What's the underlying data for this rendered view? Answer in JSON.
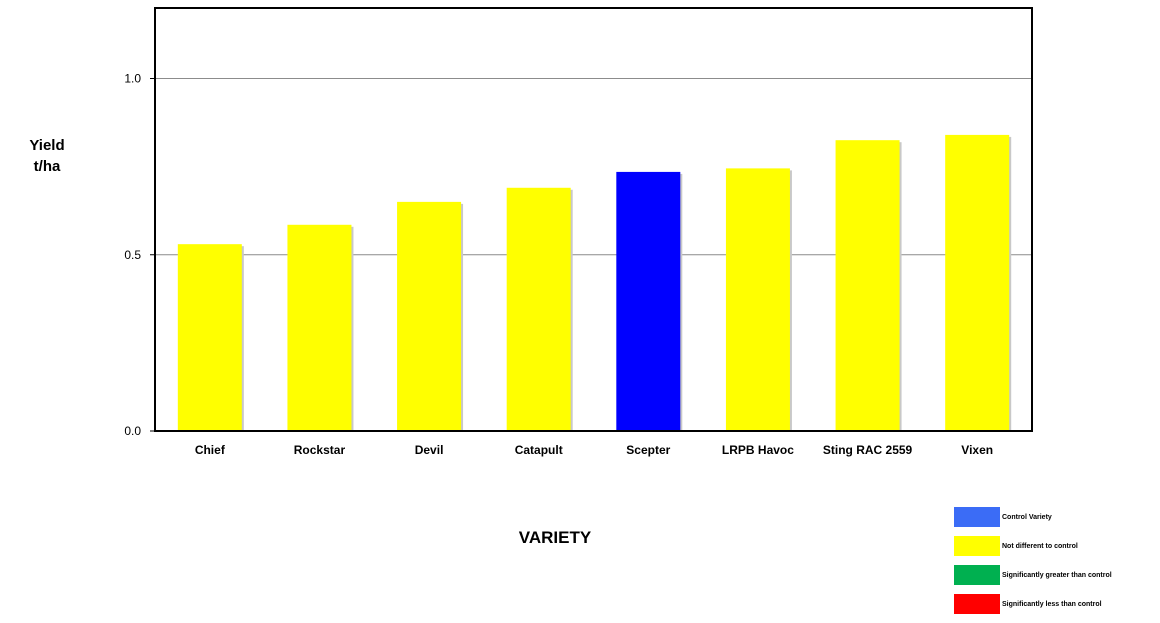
{
  "chart_data": {
    "type": "bar",
    "title": "",
    "xlabel": "VARIETY",
    "ylabel": [
      "Yield",
      "t/ha"
    ],
    "ylim": [
      0,
      1.2
    ],
    "yticks": [
      0.0,
      0.5,
      1.0
    ],
    "ytick_labels": [
      "0.0",
      "0.5",
      "1.0"
    ],
    "grid": "horizontal at 0.5 and 1.0",
    "categories": [
      "Chief",
      "Rockstar",
      "Devil",
      "Catapult",
      "Scepter",
      "LRPB Havoc",
      "Sting RAC 2559",
      "Vixen"
    ],
    "values": [
      0.53,
      0.585,
      0.65,
      0.69,
      0.735,
      0.745,
      0.825,
      0.84
    ],
    "status": [
      "not_different",
      "not_different",
      "not_different",
      "not_different",
      "control",
      "not_different",
      "not_different",
      "not_different"
    ],
    "bar_colors": {
      "control": "#0000FF",
      "not_different": "#FFFF00"
    },
    "legend": {
      "position": "bottom-right",
      "entries": [
        {
          "label": "Control Variety",
          "color": "#3B6CF6"
        },
        {
          "label": "Not different to control",
          "color": "#FFFF00"
        },
        {
          "label": "Significantly greater than control",
          "color": "#00B050"
        },
        {
          "label": "Significantly less than control",
          "color": "#FF0000"
        }
      ]
    }
  }
}
